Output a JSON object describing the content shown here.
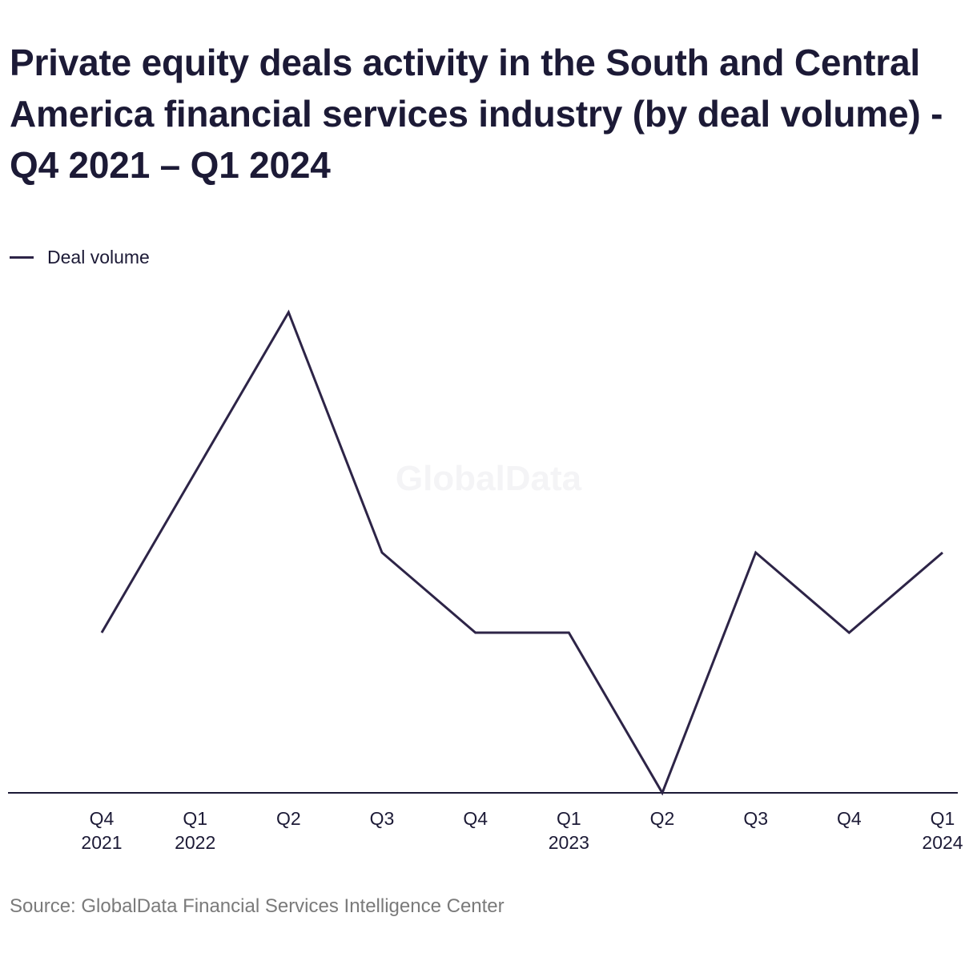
{
  "title": "Private equity deals activity in the South and Central America financial services industry (by deal volume) - Q4 2021 – Q1 2024",
  "source": "Source: GlobalData Financial Services Intelligence Center",
  "watermark": "GlobalData",
  "colors": {
    "line": "#2d2447",
    "text": "#1c1a36",
    "axis": "#1c1a36",
    "source_text": "#7a7a7a"
  },
  "chart_data": {
    "type": "line",
    "title": "Private equity deals activity in the South and Central America financial services industry (by deal volume) - Q4 2021 – Q1 2024",
    "legend_position": "top-left",
    "grid": false,
    "y_axis_visible": false,
    "categories": [
      {
        "quarter": "Q4",
        "year": "2021"
      },
      {
        "quarter": "Q1",
        "year": "2022"
      },
      {
        "quarter": "Q2",
        "year": ""
      },
      {
        "quarter": "Q3",
        "year": ""
      },
      {
        "quarter": "Q4",
        "year": ""
      },
      {
        "quarter": "Q1",
        "year": "2023"
      },
      {
        "quarter": "Q2",
        "year": ""
      },
      {
        "quarter": "Q3",
        "year": ""
      },
      {
        "quarter": "Q4",
        "year": ""
      },
      {
        "quarter": "Q1",
        "year": "2024"
      }
    ],
    "ylim": [
      0,
      6
    ],
    "series": [
      {
        "name": "Deal volume",
        "values": [
          2,
          4,
          6,
          3,
          2,
          2,
          0,
          3,
          2,
          3
        ]
      }
    ]
  }
}
